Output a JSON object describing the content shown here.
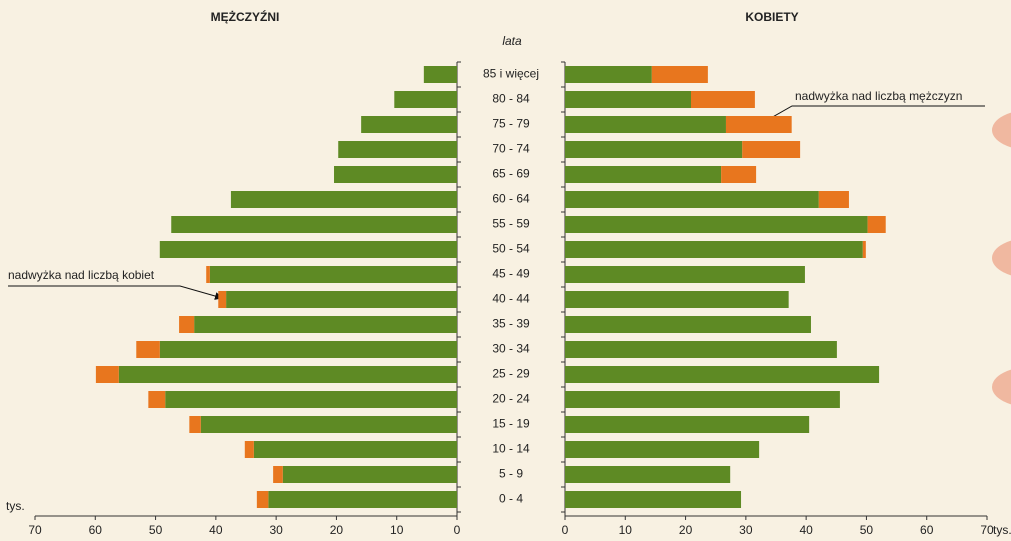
{
  "chart_data": {
    "type": "pyramid",
    "category_title": "lata",
    "categories": [
      "85 i więcej",
      "80 - 84",
      "75 - 79",
      "70 - 74",
      "65 - 69",
      "60 - 64",
      "55 - 59",
      "50 - 54",
      "45 - 49",
      "40 - 44",
      "35 - 39",
      "30 - 34",
      "25 - 29",
      "20 - 24",
      "15 - 19",
      "10 - 14",
      "5 - 9",
      "0 - 4"
    ],
    "x_label": "tys.",
    "left": {
      "title": "MĘŻCZYŹNI",
      "xlim": [
        70,
        0
      ],
      "xticks": [
        70,
        60,
        50,
        40,
        30,
        20,
        10,
        0
      ],
      "series": [
        {
          "color": "#5e8a24",
          "values": [
            5.5,
            10.4,
            15.9,
            19.7,
            20.4,
            37.5,
            47.4,
            49.3,
            41.0,
            38.3,
            43.6,
            49.3,
            56.1,
            48.4,
            42.5,
            33.7,
            28.9,
            31.3
          ]
        },
        {
          "color": "#e8761e",
          "values": [
            0,
            0,
            0,
            0,
            0,
            0,
            0,
            0,
            0.6,
            1.3,
            2.5,
            3.9,
            3.8,
            2.8,
            1.9,
            1.5,
            1.6,
            1.9
          ]
        }
      ]
    },
    "right": {
      "title": "KOBIETY",
      "xlim": [
        0,
        70
      ],
      "xticks": [
        0,
        10,
        20,
        30,
        40,
        50,
        60,
        70
      ],
      "series": [
        {
          "color": "#5e8a24",
          "values": [
            14.4,
            20.9,
            26.7,
            29.4,
            25.9,
            42.1,
            50.2,
            49.4,
            39.8,
            37.1,
            40.8,
            45.1,
            52.1,
            45.6,
            40.5,
            32.2,
            27.4,
            29.2
          ]
        },
        {
          "color": "#e8761e",
          "values": [
            9.3,
            10.6,
            10.9,
            9.6,
            5.8,
            5.0,
            3.0,
            0.5,
            0,
            0,
            0,
            0,
            0,
            0,
            0,
            0,
            0,
            0
          ]
        }
      ]
    },
    "annotations": [
      "nadwyżka nad liczbą kobiet",
      "nadwyżka nad liczbą mężczyzn"
    ]
  }
}
